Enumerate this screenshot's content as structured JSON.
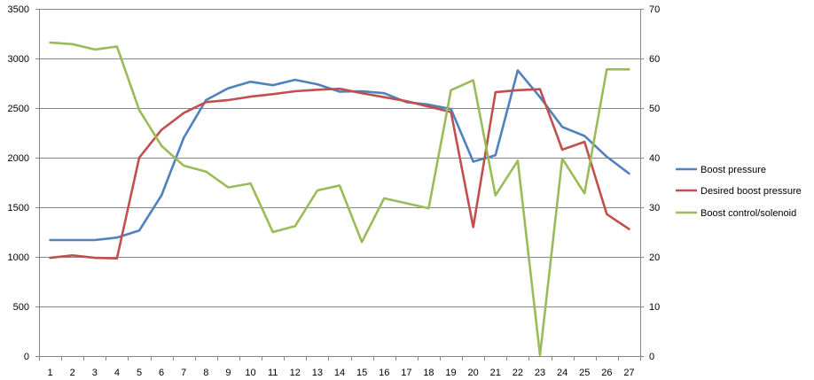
{
  "chart_data": {
    "type": "line",
    "title": "",
    "xlabel": "",
    "ylabel": "",
    "y2label": "",
    "x": [
      1,
      2,
      3,
      4,
      5,
      6,
      7,
      8,
      9,
      10,
      11,
      12,
      13,
      14,
      15,
      16,
      17,
      18,
      19,
      20,
      21,
      22,
      23,
      24,
      25,
      26,
      27
    ],
    "ylim": [
      0,
      3500
    ],
    "y_ticks": [
      0,
      500,
      1000,
      1500,
      2000,
      2500,
      3000,
      3500
    ],
    "y2lim": [
      0,
      70
    ],
    "y2_ticks": [
      0,
      10,
      20,
      30,
      40,
      50,
      60,
      70
    ],
    "grid": "horizontal",
    "legend_position": "right",
    "series": [
      {
        "name": "Boost pressure",
        "color": "#4F81BD",
        "axis": "left",
        "values": [
          1170,
          1170,
          1170,
          1195,
          1265,
          1620,
          2200,
          2580,
          2700,
          2765,
          2730,
          2785,
          2740,
          2665,
          2670,
          2650,
          2560,
          2535,
          2490,
          1960,
          2025,
          2880,
          2610,
          2310,
          2220,
          2010,
          1840
        ]
      },
      {
        "name": "Desired boost pressure",
        "color": "#C0504D",
        "axis": "left",
        "values": [
          990,
          1015,
          990,
          985,
          2000,
          2280,
          2450,
          2560,
          2580,
          2615,
          2640,
          2670,
          2685,
          2695,
          2650,
          2610,
          2570,
          2515,
          2460,
          1300,
          2660,
          2680,
          2690,
          2080,
          2160,
          1430,
          1280
        ]
      },
      {
        "name": "Boost control/solenoid",
        "color": "#9BBB59",
        "axis": "right",
        "values": [
          63.2,
          62.9,
          61.8,
          62.4,
          49.6,
          42.4,
          38.4,
          37.2,
          34.0,
          34.8,
          25.0,
          26.2,
          33.4,
          34.4,
          23.0,
          31.8,
          30.8,
          29.8,
          53.6,
          55.6,
          32.4,
          39.4,
          0.2,
          39.8,
          32.8,
          57.8,
          57.8
        ]
      }
    ]
  }
}
